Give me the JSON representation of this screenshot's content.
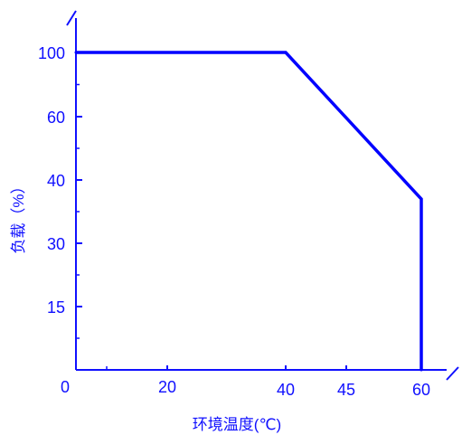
{
  "chart_data": {
    "type": "line",
    "xlabel": "环境温度(℃)",
    "ylabel": "负载（%）",
    "origin_label": "0",
    "x_ticks": [
      {
        "value": 20,
        "label": "20"
      },
      {
        "value": 40,
        "label": "40"
      },
      {
        "value": 45,
        "label": "45"
      },
      {
        "value": 60,
        "label": "60"
      }
    ],
    "x_end_label": "60",
    "y_ticks": [
      {
        "value": 100,
        "label": "100"
      },
      {
        "value": 60,
        "label": "60"
      },
      {
        "value": 40,
        "label": "40"
      },
      {
        "value": 30,
        "label": "30"
      },
      {
        "value": 15,
        "label": "15"
      }
    ],
    "series": [
      {
        "points": [
          {
            "x": 0,
            "y": 100
          },
          {
            "x": 40,
            "y": 100
          },
          {
            "x": 60,
            "y": 37
          },
          {
            "x": 60,
            "y": 0
          }
        ]
      }
    ],
    "colors": {
      "axis": "#1010ff",
      "line": "#0000ff"
    },
    "grid": false
  }
}
